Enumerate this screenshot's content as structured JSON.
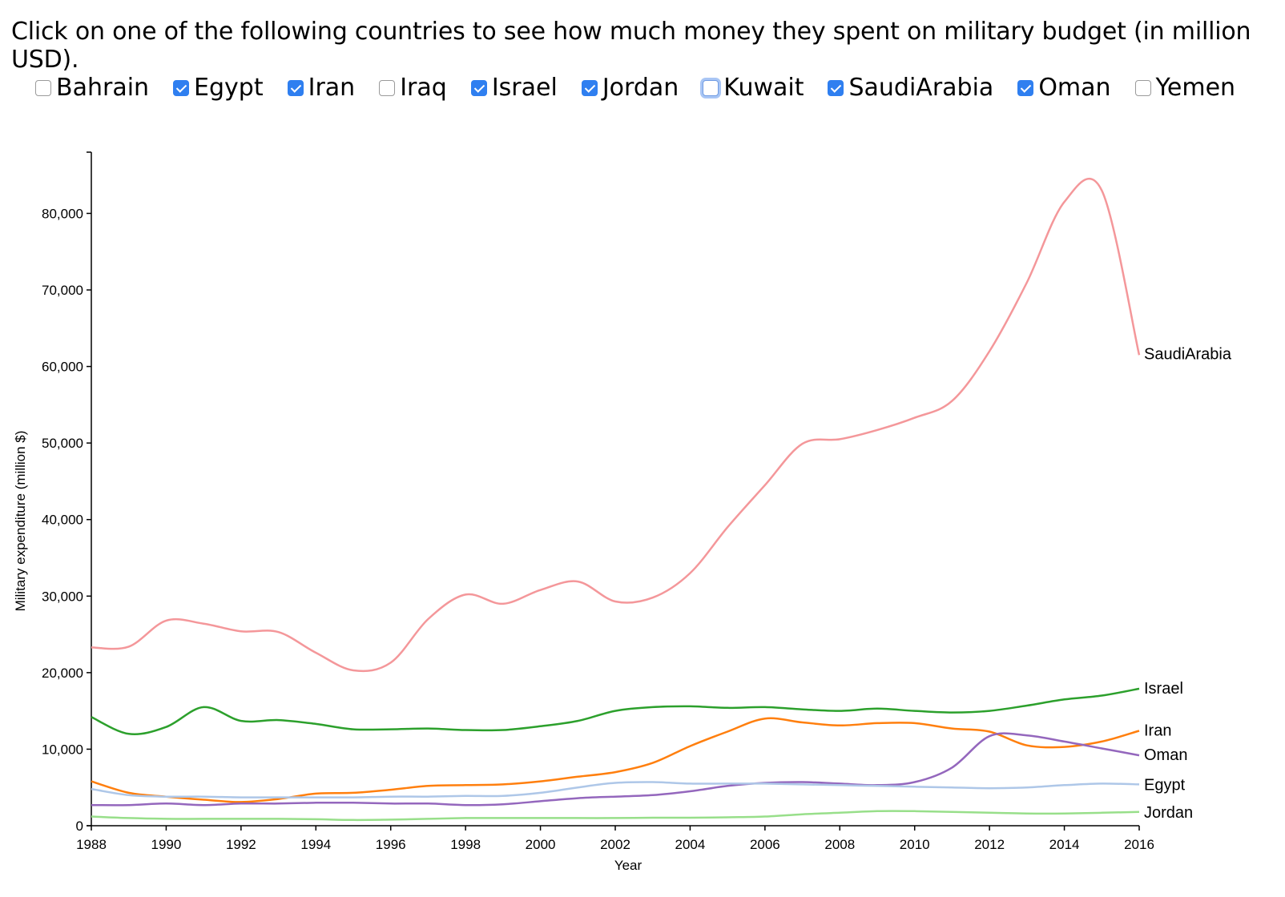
{
  "prompt": "Click on one of the following countries to see how much money they spent on military budget (in million USD).",
  "countries": [
    {
      "label": "Bahrain",
      "checked": false
    },
    {
      "label": "Egypt",
      "checked": true
    },
    {
      "label": "Iran",
      "checked": true
    },
    {
      "label": "Iraq",
      "checked": false
    },
    {
      "label": "Israel",
      "checked": true
    },
    {
      "label": "Jordan",
      "checked": true
    },
    {
      "label": "Kuwait",
      "checked": false,
      "focused": true
    },
    {
      "label": "SaudiArabia",
      "checked": true
    },
    {
      "label": "Oman",
      "checked": true
    },
    {
      "label": "Yemen",
      "checked": false
    }
  ],
  "chart_data": {
    "type": "line",
    "title": "",
    "xlabel": "Year",
    "ylabel": "Military expenditure (million $)",
    "xlim": [
      1988,
      2016
    ],
    "ylim": [
      0,
      88000
    ],
    "xticks": [
      1988,
      1990,
      1992,
      1994,
      1996,
      1998,
      2000,
      2002,
      2004,
      2006,
      2008,
      2010,
      2012,
      2014,
      2016
    ],
    "yticks": [
      0,
      10000,
      20000,
      30000,
      40000,
      50000,
      60000,
      70000,
      80000
    ],
    "ytick_labels": [
      "0",
      "10,000",
      "20,000",
      "30,000",
      "40,000",
      "50,000",
      "60,000",
      "70,000",
      "80,000"
    ],
    "grid": false,
    "legend": "end-of-line labels",
    "x": [
      1988,
      1989,
      1990,
      1991,
      1992,
      1993,
      1994,
      1995,
      1996,
      1997,
      1998,
      1999,
      2000,
      2001,
      2002,
      2003,
      2004,
      2005,
      2006,
      2007,
      2008,
      2009,
      2010,
      2011,
      2012,
      2013,
      2014,
      2015,
      2016
    ],
    "series": [
      {
        "name": "SaudiArabia",
        "color": "#f4979a",
        "values": [
          23300,
          23400,
          26800,
          26400,
          25400,
          25300,
          22600,
          20300,
          21300,
          27000,
          30200,
          29000,
          30800,
          31900,
          29300,
          29800,
          33000,
          39000,
          44500,
          49900,
          50500,
          51700,
          53300,
          55500,
          62000,
          71000,
          81500,
          83000,
          61500
        ]
      },
      {
        "name": "Israel",
        "color": "#2ca02c",
        "values": [
          14200,
          12000,
          12900,
          15500,
          13700,
          13800,
          13300,
          12600,
          12600,
          12700,
          12500,
          12500,
          13000,
          13700,
          15000,
          15500,
          15600,
          15400,
          15500,
          15200,
          15000,
          15300,
          15000,
          14800,
          15000,
          15700,
          16500,
          17000,
          17900
        ]
      },
      {
        "name": "Iran",
        "color": "#ff7f0e",
        "values": [
          5800,
          4300,
          3800,
          3400,
          3100,
          3500,
          4200,
          4300,
          4700,
          5200,
          5300,
          5400,
          5800,
          6400,
          7000,
          8200,
          10400,
          12300,
          14000,
          13500,
          13100,
          13400,
          13400,
          12700,
          12300,
          10500,
          10300,
          11000,
          12400
        ]
      },
      {
        "name": "Oman",
        "color": "#9467bd",
        "values": [
          2700,
          2700,
          2900,
          2700,
          2900,
          2900,
          3000,
          3000,
          2900,
          2900,
          2700,
          2800,
          3200,
          3600,
          3800,
          4000,
          4500,
          5200,
          5600,
          5700,
          5500,
          5300,
          5700,
          7600,
          11700,
          11800,
          11000,
          10100,
          9200
        ]
      },
      {
        "name": "Egypt",
        "color": "#aec7e8",
        "values": [
          4800,
          4000,
          3800,
          3800,
          3700,
          3700,
          3700,
          3700,
          3800,
          3800,
          3900,
          3900,
          4300,
          5000,
          5600,
          5700,
          5500,
          5500,
          5500,
          5400,
          5300,
          5200,
          5100,
          5000,
          4900,
          5000,
          5300,
          5500,
          5400
        ]
      },
      {
        "name": "Jordan",
        "color": "#98df8a",
        "values": [
          1200,
          1000,
          900,
          900,
          900,
          900,
          850,
          750,
          800,
          900,
          1000,
          1000,
          1000,
          1000,
          1000,
          1050,
          1050,
          1100,
          1200,
          1500,
          1700,
          1900,
          1900,
          1800,
          1700,
          1600,
          1600,
          1700,
          1800
        ]
      }
    ]
  }
}
